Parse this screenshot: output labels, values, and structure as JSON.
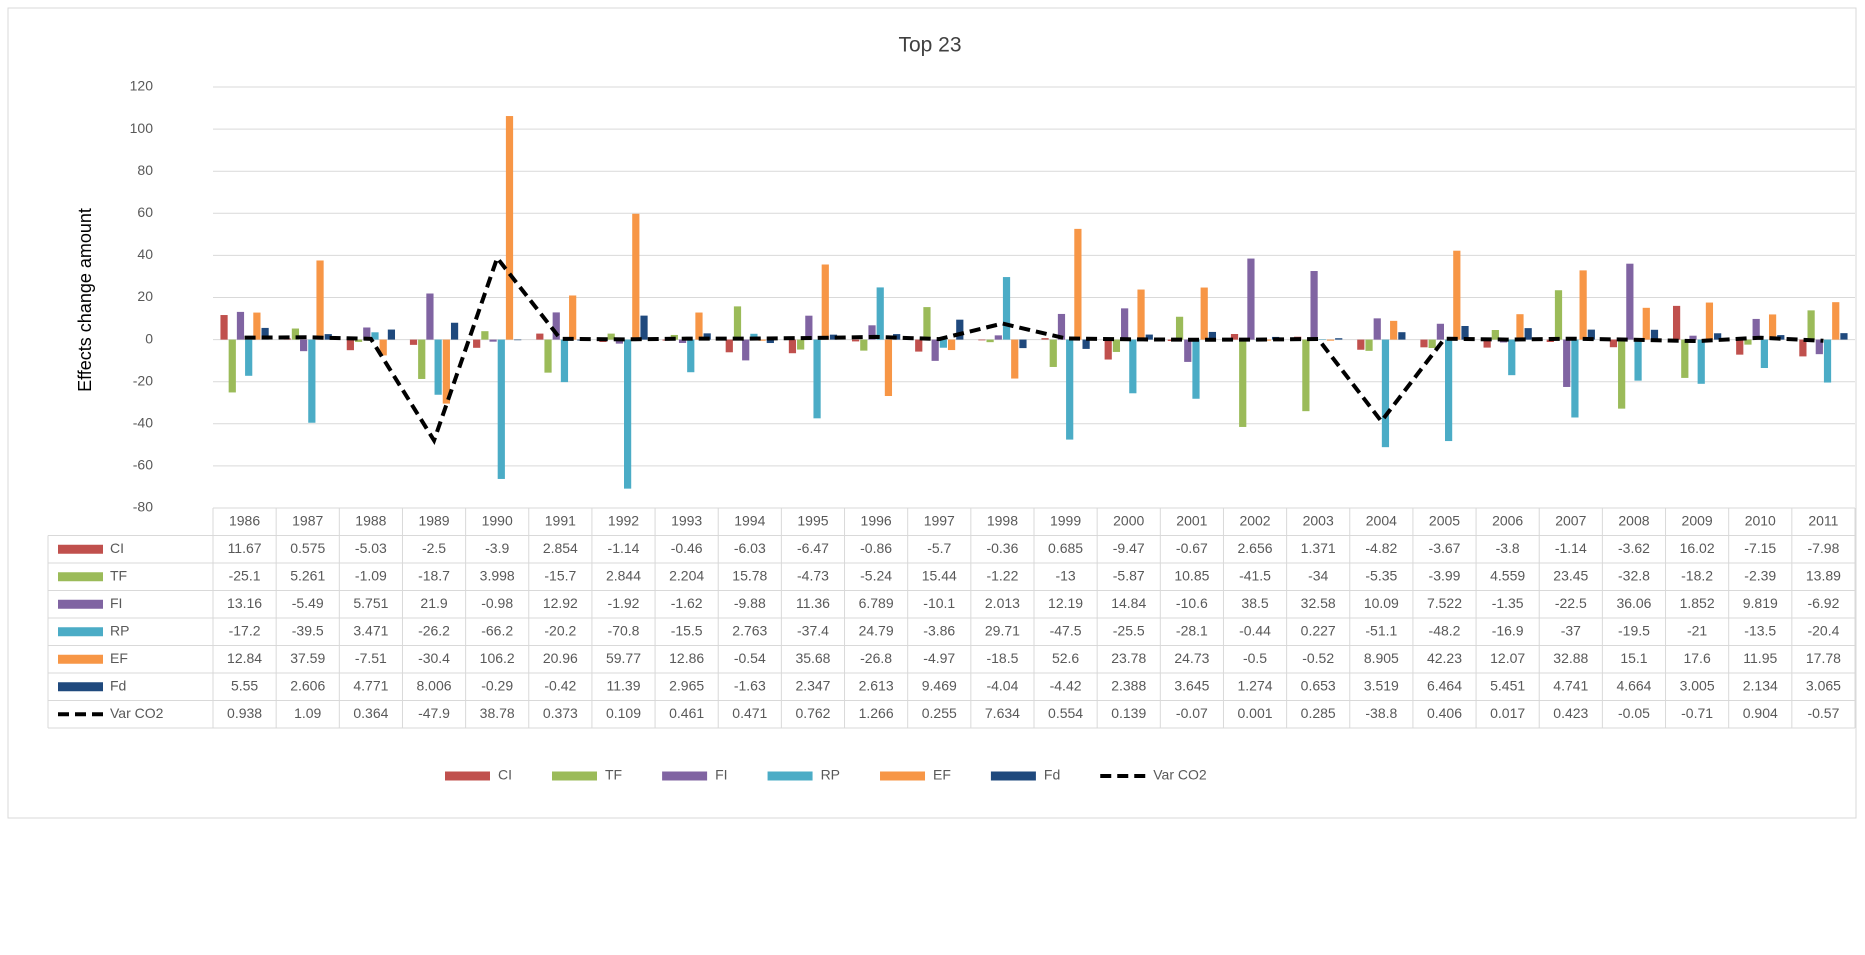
{
  "chart_data": {
    "type": "bar",
    "title": "Top 23",
    "y_label": "Effects change amount",
    "categories": [
      "1986",
      "1987",
      "1988",
      "1989",
      "1990",
      "1991",
      "1992",
      "1993",
      "1994",
      "1995",
      "1996",
      "1997",
      "1998",
      "1999",
      "2000",
      "2001",
      "2002",
      "2003",
      "2004",
      "2005",
      "2006",
      "2007",
      "2008",
      "2009",
      "2010",
      "2011"
    ],
    "ylim": [
      -80,
      120
    ],
    "yticks": [
      -80,
      -60,
      -40,
      -20,
      0,
      20,
      40,
      60,
      80,
      100,
      120
    ],
    "grid": true,
    "legend": "bottom",
    "series": [
      {
        "name": "CI",
        "color": "#c0504d",
        "values": [
          11.67,
          0.575,
          -5.03,
          -2.5,
          -3.9,
          2.854,
          -1.14,
          -0.46,
          -6.03,
          -6.47,
          -0.86,
          -5.7,
          -0.36,
          0.685,
          -9.47,
          -0.67,
          2.656,
          1.371,
          -4.82,
          -3.67,
          -3.8,
          -1.14,
          -3.62,
          16.02,
          -7.15,
          -7.98
        ]
      },
      {
        "name": "TF",
        "color": "#9bbb59",
        "values": [
          -25.1,
          5.261,
          -1.09,
          -18.7,
          3.998,
          -15.7,
          2.844,
          2.204,
          15.78,
          -4.73,
          -5.24,
          15.44,
          -1.22,
          -13,
          -5.87,
          10.85,
          -41.5,
          -34,
          -5.35,
          -3.99,
          4.559,
          23.45,
          -32.8,
          -18.2,
          -2.39,
          13.89
        ]
      },
      {
        "name": "FI",
        "color": "#8064a2",
        "values": [
          13.16,
          -5.49,
          5.751,
          21.9,
          -0.98,
          12.92,
          -1.92,
          -1.62,
          -9.88,
          11.36,
          6.789,
          -10.1,
          2.013,
          12.19,
          14.84,
          -10.6,
          38.5,
          32.58,
          10.09,
          7.522,
          -1.35,
          -22.5,
          36.06,
          1.852,
          9.819,
          -6.92
        ]
      },
      {
        "name": "RP",
        "color": "#4bacc6",
        "values": [
          -17.2,
          -39.5,
          3.471,
          -26.2,
          -66.2,
          -20.2,
          -70.8,
          -15.5,
          2.763,
          -37.4,
          24.79,
          -3.86,
          29.71,
          -47.5,
          -25.5,
          -28.1,
          -0.44,
          0.227,
          -51.1,
          -48.2,
          -16.9,
          -37,
          -19.5,
          -21,
          -13.5,
          -20.4
        ]
      },
      {
        "name": "EF",
        "color": "#f79646",
        "values": [
          12.84,
          37.59,
          -7.51,
          -30.4,
          106.2,
          20.96,
          59.77,
          12.86,
          -0.54,
          35.68,
          -26.8,
          -4.97,
          -18.5,
          52.6,
          23.78,
          24.73,
          -0.5,
          -0.52,
          8.905,
          42.23,
          12.07,
          32.88,
          15.1,
          17.6,
          11.95,
          17.78
        ]
      },
      {
        "name": "Fd",
        "color": "#1f497d",
        "values": [
          5.55,
          2.606,
          4.771,
          8.006,
          -0.29,
          -0.42,
          11.39,
          2.965,
          -1.63,
          2.347,
          2.613,
          9.469,
          -4.04,
          -4.42,
          2.388,
          3.645,
          1.274,
          0.653,
          3.519,
          6.464,
          5.451,
          4.741,
          4.664,
          3.005,
          2.134,
          3.065
        ]
      },
      {
        "name": "Var CO2",
        "type": "line",
        "dashed": true,
        "color": "#000000",
        "values": [
          0.938,
          1.09,
          0.364,
          -47.9,
          38.78,
          0.373,
          0.109,
          0.461,
          0.471,
          0.762,
          1.266,
          0.255,
          7.634,
          0.554,
          0.139,
          -0.07,
          0.001,
          0.285,
          -38.8,
          0.406,
          0.017,
          0.423,
          -0.05,
          -0.71,
          0.904,
          -0.57
        ]
      }
    ]
  }
}
